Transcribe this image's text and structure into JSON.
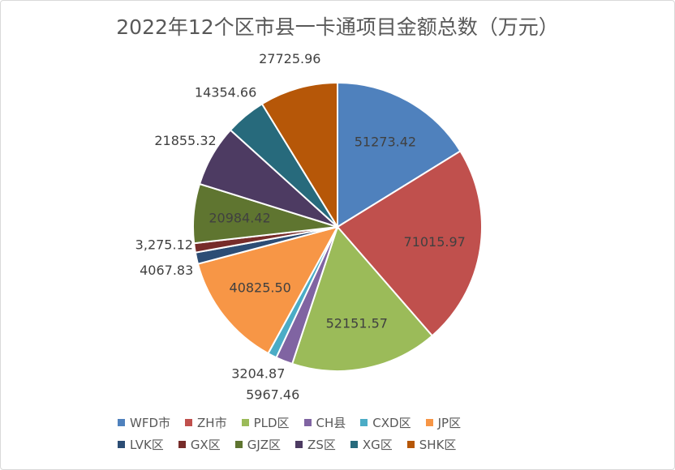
{
  "chart_data": {
    "type": "pie",
    "title": "2022年12个区市县一卡通项目金额总数（万元）",
    "start_angle_deg": 0,
    "direction": "clockwise",
    "legend_position": "bottom",
    "slices": [
      {
        "name": "WFD市",
        "value": 51273.42,
        "label": "51273.42",
        "color": "#4f81bd"
      },
      {
        "name": "ZH市",
        "value": 71015.97,
        "label": "71015.97",
        "color": "#c0504d"
      },
      {
        "name": "PLD区",
        "value": 52151.57,
        "label": "52151.57",
        "color": "#9bbb59"
      },
      {
        "name": "CH县",
        "value": 5967.46,
        "label": "5967.46",
        "color": "#8064a2"
      },
      {
        "name": "CXD区",
        "value": 3204.87,
        "label": "3204.87",
        "color": "#4bacc6"
      },
      {
        "name": "JP区",
        "value": 40825.5,
        "label": "40825.50",
        "color": "#f79646"
      },
      {
        "name": "LVK区",
        "value": 4067.83,
        "label": "4067.83",
        "color": "#2c4d75"
      },
      {
        "name": "GX区",
        "value": 3275.12,
        "label": "3,275.12",
        "color": "#772c2a"
      },
      {
        "name": "GJZ区",
        "value": 20984.42,
        "label": "20984.42",
        "color": "#5f7530"
      },
      {
        "name": "ZS区",
        "value": 21855.32,
        "label": "21855.32",
        "color": "#4d3b62"
      },
      {
        "name": "XG区",
        "value": 14354.66,
        "label": "14354.66",
        "color": "#276a7c"
      },
      {
        "name": "SHK区",
        "value": 27725.96,
        "label": "27725.96",
        "color": "#b65708"
      }
    ]
  }
}
